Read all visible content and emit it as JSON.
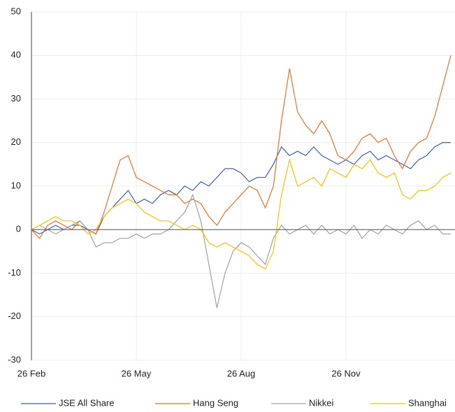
{
  "chart_data": {
    "type": "line",
    "categories": [
      "26 Feb",
      null,
      null,
      null,
      null,
      null,
      null,
      null,
      null,
      null,
      null,
      null,
      null,
      "26 May",
      null,
      null,
      null,
      null,
      null,
      null,
      null,
      null,
      null,
      null,
      null,
      null,
      "26 Aug",
      null,
      null,
      null,
      null,
      null,
      null,
      null,
      null,
      null,
      null,
      null,
      null,
      "26 Nov",
      null,
      null,
      null,
      null,
      null,
      null,
      null,
      null,
      null,
      null,
      null,
      null,
      null
    ],
    "series": [
      {
        "name": "JSE All Share",
        "color": "#3a5fb7",
        "values": [
          0,
          -1,
          0,
          1,
          0,
          1,
          1,
          0,
          -1,
          3,
          5,
          7,
          9,
          6,
          7,
          6,
          8,
          9,
          8,
          10,
          9,
          11,
          10,
          12,
          14,
          14,
          13,
          11,
          12,
          12,
          15,
          19,
          17,
          18,
          17,
          19,
          17,
          16,
          15,
          16,
          15,
          17,
          18,
          16,
          17,
          16,
          15,
          14,
          16,
          17,
          19,
          20,
          20
        ]
      },
      {
        "name": "Hang Seng",
        "color": "#e8712a",
        "values": [
          0,
          -2,
          1,
          2,
          1,
          0,
          2,
          0,
          -1,
          4,
          10,
          16,
          17,
          12,
          11,
          10,
          9,
          8,
          8,
          6,
          7,
          6,
          3,
          1,
          4,
          6,
          8,
          10,
          9,
          5,
          10,
          25,
          37,
          27,
          24,
          22,
          25,
          22,
          17,
          16,
          18,
          21,
          22,
          20,
          21,
          17,
          14,
          18,
          20,
          21,
          26,
          33,
          40
        ]
      },
      {
        "name": "Nikkei",
        "color": "#a0a0a0",
        "values": [
          0,
          1,
          0,
          -1,
          0,
          1,
          2,
          0,
          -4,
          -3,
          -3,
          -2,
          -2,
          -1,
          -2,
          -1,
          -1,
          0,
          2,
          4,
          8,
          2,
          -8,
          -18,
          -10,
          -5,
          -3,
          -4,
          -6,
          -8,
          -2,
          1,
          -1,
          0,
          1,
          -1,
          1,
          -1,
          0,
          -1,
          1,
          -2,
          0,
          -1,
          1,
          0,
          -1,
          1,
          2,
          0,
          1,
          -1,
          -1
        ]
      },
      {
        "name": "Shanghai",
        "color": "#f5c300",
        "values": [
          0,
          1,
          2,
          3,
          2,
          2,
          1,
          -1,
          0,
          3,
          5,
          6,
          7,
          6,
          4,
          3,
          2,
          2,
          1,
          0,
          1,
          0,
          -3,
          -4,
          -3,
          -4,
          -5,
          -6,
          -8,
          -9,
          -5,
          8,
          16,
          10,
          11,
          12,
          10,
          14,
          13,
          12,
          15,
          14,
          16,
          13,
          12,
          13,
          8,
          7,
          9,
          9,
          10,
          12,
          13
        ]
      }
    ],
    "ylim": [
      -30,
      50
    ],
    "yticks": [
      -30,
      -20,
      -10,
      0,
      10,
      20,
      30,
      40,
      50
    ],
    "grid": true,
    "legend": "bottom"
  }
}
